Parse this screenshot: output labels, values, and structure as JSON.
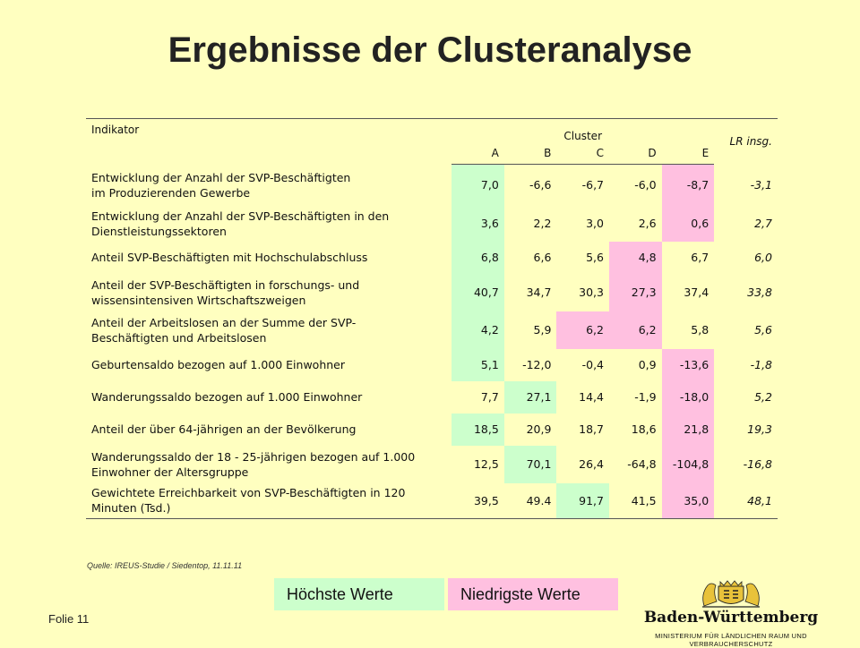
{
  "title": "Ergebnisse der Clusteranalyse",
  "table": {
    "indicator_label": "Indikator",
    "cluster_label": "Cluster",
    "lr_label": "LR insg.",
    "cluster_letters": [
      "A",
      "B",
      "C",
      "D",
      "E"
    ],
    "rows": [
      {
        "indikator": [
          "Entwicklung der Anzahl der SVP-Beschäftigten",
          "im Produzierenden Gewerbe"
        ],
        "values": [
          "7,0",
          "-6,6",
          "-6,7",
          "-6,0",
          "-8,7"
        ],
        "lr": "-3,1",
        "highest": 0,
        "lowest": 4
      },
      {
        "indikator": [
          "Entwicklung der Anzahl der SVP-Beschäftigten in den",
          "Dienstleistungssektoren"
        ],
        "values": [
          "3,6",
          "2,2",
          "3,0",
          "2,6",
          "0,6"
        ],
        "lr": "2,7",
        "highest": 0,
        "lowest": 4
      },
      {
        "indikator": [
          "Anteil SVP-Beschäftigten mit Hochschulabschluss"
        ],
        "values": [
          "6,8",
          "6,6",
          "5,6",
          "4,8",
          "6,7"
        ],
        "lr": "6,0",
        "highest": 0,
        "lowest": 3
      },
      {
        "indikator": [
          "Anteil der SVP-Beschäftigten in forschungs- und",
          "wissensintensiven  Wirtschaftszweigen"
        ],
        "values": [
          "40,7",
          "34,7",
          "30,3",
          "27,3",
          "37,4"
        ],
        "lr": "33,8",
        "highest": 0,
        "lowest": 3
      },
      {
        "indikator": [
          "Anteil der Arbeitslosen an der Summe der SVP-",
          "Beschäftigten und Arbeitslosen"
        ],
        "values": [
          "4,2",
          "5,9",
          "6,2",
          "6,2",
          "5,8"
        ],
        "lr": "5,6",
        "highest": 0,
        "lowest": [
          2,
          3
        ]
      },
      {
        "indikator": [
          "Geburtensaldo bezogen auf 1.000 Einwohner"
        ],
        "values": [
          "5,1",
          "-12,0",
          "-0,4",
          "0,9",
          "-13,6"
        ],
        "lr": "-1,8",
        "highest": 0,
        "lowest": 4
      },
      {
        "indikator": [
          "Wanderungssaldo bezogen auf 1.000 Einwohner"
        ],
        "values": [
          "7,7",
          "27,1",
          "14,4",
          "-1,9",
          "-18,0"
        ],
        "lr": "5,2",
        "highest": 1,
        "lowest": 4
      },
      {
        "indikator": [
          "Anteil der über 64-jährigen an der Bevölkerung"
        ],
        "values": [
          "18,5",
          "20,9",
          "18,7",
          "18,6",
          "21,8"
        ],
        "lr": "19,3",
        "highest": 0,
        "lowest": 4
      },
      {
        "indikator": [
          "Wanderungssaldo der 18 - 25-jährigen bezogen auf 1.000",
          "Einwohner der Altersgruppe"
        ],
        "values": [
          "12,5",
          "70,1",
          "26,4",
          "-64,8",
          "-104,8"
        ],
        "lr": "-16,8",
        "highest": 1,
        "lowest": 4
      },
      {
        "indikator": [
          "Gewichtete Erreichbarkeit von SVP-Beschäftigten in 120",
          "Minuten (Tsd.)"
        ],
        "values": [
          "39,5",
          "49.4",
          "91,7",
          "41,5",
          "35,0"
        ],
        "lr": "48,1",
        "highest": 2,
        "lowest": 4
      }
    ]
  },
  "source": "Quelle: IREUS-Studie / Siedentop, 11.11.11",
  "legend": {
    "highest": "Höchste Werte",
    "lowest": "Niedrigste Werte"
  },
  "colors": {
    "background": "#ffffc0",
    "highest": "#ccffcc",
    "lowest": "#ffc0e0"
  },
  "slide_number": "Folie 11",
  "logo": {
    "name": "Baden-Württemberg",
    "ministry": "MINISTERIUM FÜR LÄNDLICHEN RAUM UND VERBRAUCHERSCHUTZ",
    "icon": "coat-of-arms-icon"
  }
}
